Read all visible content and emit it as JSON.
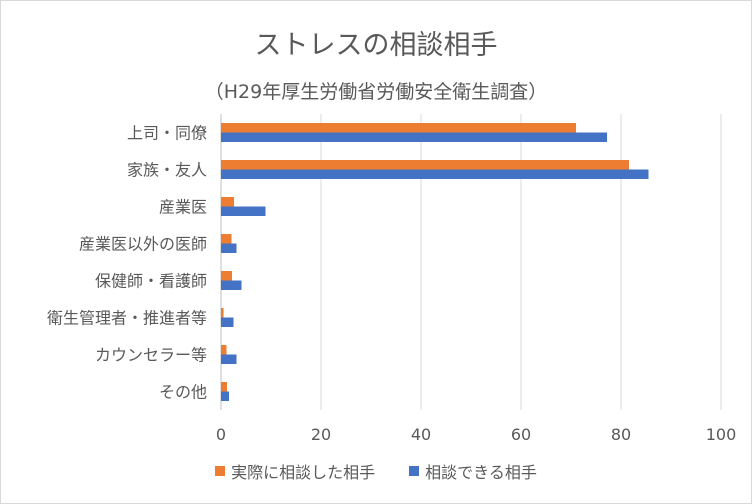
{
  "chart_data": {
    "type": "bar",
    "orientation": "horizontal",
    "title": "ストレスの相談相手",
    "subtitle": "（H29年厚生労働省労働安全衛生調査）",
    "categories": [
      "上司・同僚",
      "家族・友人",
      "産業医",
      "産業医以外の医師",
      "保健師・看護師",
      "衛生管理者・推進者等",
      "カウンセラー等",
      "その他"
    ],
    "series": [
      {
        "name": "実際に相談した相手",
        "color": "#ed7d31",
        "values": [
          71,
          81.6,
          2.6,
          2.1,
          2.2,
          0.5,
          1.1,
          1.2
        ]
      },
      {
        "name": "相談できる相手",
        "color": "#4472c4",
        "values": [
          77.2,
          85.5,
          8.9,
          3.1,
          4.1,
          2.5,
          3.1,
          1.6
        ]
      }
    ],
    "xlim": [
      0,
      100
    ],
    "xticks": [
      0,
      20,
      40,
      60,
      80,
      100
    ],
    "grid": true,
    "legend_position": "bottom"
  }
}
